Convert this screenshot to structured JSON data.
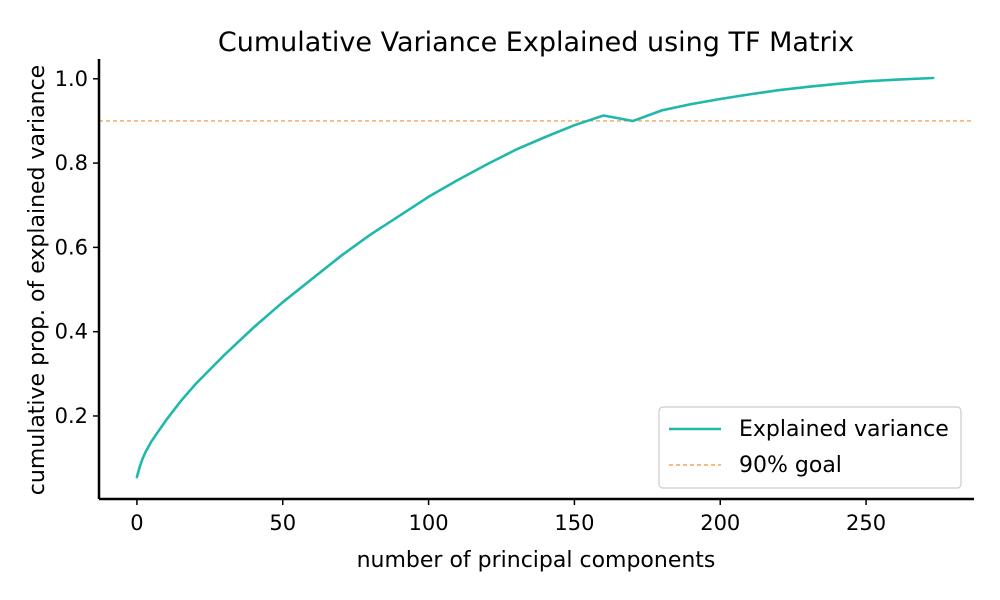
{
  "chart_data": {
    "type": "line",
    "title": "Cumulative Variance Explained using TF Matrix",
    "xlabel": "number of principal components",
    "ylabel": "cumulative prop. of explained variance",
    "xlim": [
      -13,
      287
    ],
    "ylim": [
      0.003,
      1.047
    ],
    "xticks": [
      0,
      50,
      100,
      150,
      200,
      250
    ],
    "yticks": [
      0.2,
      0.4,
      0.6,
      0.8,
      1.0
    ],
    "xtick_labels": [
      "0",
      "50",
      "100",
      "150",
      "200",
      "250"
    ],
    "ytick_labels": [
      "0.2",
      "0.4",
      "0.6",
      "0.8",
      "1.0"
    ],
    "grid": false,
    "legend_position": "lower-right",
    "series": [
      {
        "name": "Explained variance",
        "color": "#1fb8aa",
        "style": "solid",
        "x": [
          0,
          1,
          2,
          3,
          5,
          7,
          10,
          15,
          20,
          25,
          30,
          40,
          50,
          60,
          70,
          80,
          90,
          100,
          110,
          120,
          130,
          140,
          150,
          160,
          170,
          180,
          190,
          200,
          210,
          220,
          230,
          240,
          250,
          260,
          273
        ],
        "y": [
          0.055,
          0.08,
          0.1,
          0.115,
          0.14,
          0.16,
          0.19,
          0.235,
          0.275,
          0.31,
          0.345,
          0.41,
          0.47,
          0.525,
          0.58,
          0.63,
          0.675,
          0.72,
          0.76,
          0.797,
          0.832,
          0.862,
          0.89,
          0.913,
          0.9,
          0.925,
          0.94,
          0.952,
          0.963,
          0.973,
          0.981,
          0.988,
          0.994,
          0.998,
          1.002
        ]
      },
      {
        "name": "90% goal",
        "color": "#f0913a",
        "style": "dashed",
        "y_constant": 0.9
      }
    ]
  }
}
